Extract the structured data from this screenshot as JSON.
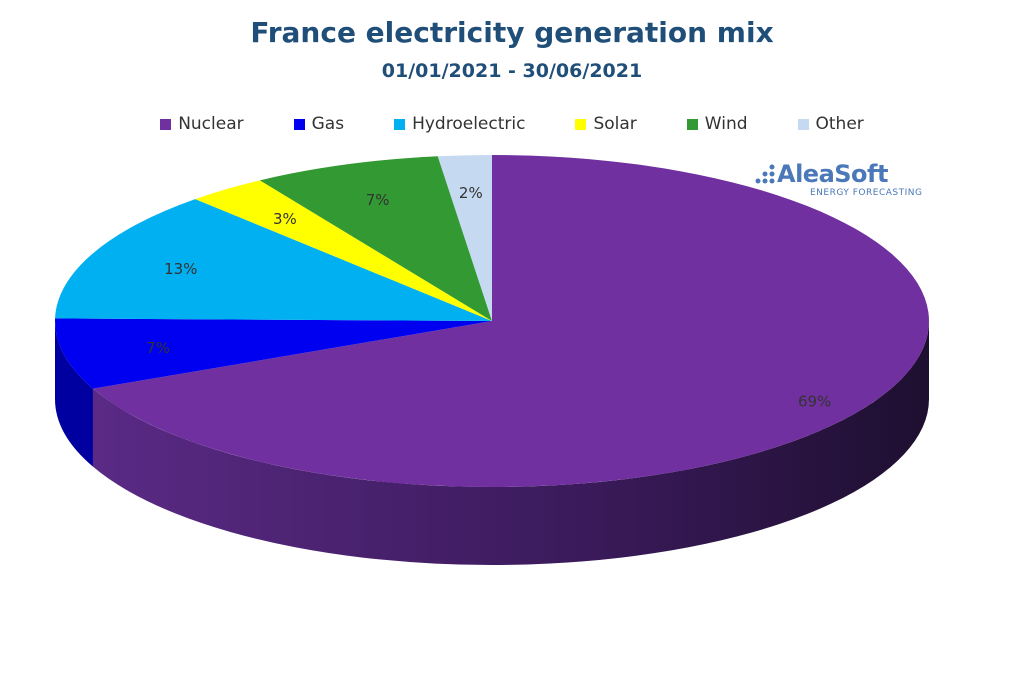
{
  "chart_data": {
    "type": "pie",
    "title": "France electricity generation mix",
    "subtitle": "01/01/2021 - 30/06/2021",
    "legend_position": "top",
    "categories": [
      "Nuclear",
      "Gas",
      "Hydroelectric",
      "Solar",
      "Wind",
      "Other"
    ],
    "values": [
      69,
      7,
      13,
      3,
      7,
      2
    ],
    "labels": [
      "69%",
      "7%",
      "13%",
      "3%",
      "7%",
      "2%"
    ],
    "colors": [
      "#7030a0",
      "#0000f0",
      "#00b0f0",
      "#ffff00",
      "#339933",
      "#c5d9f1"
    ],
    "side_colors": [
      "#4a2070",
      "#0000a0",
      "#0080b0",
      "#b0b000",
      "#206020",
      "#8fa5c0"
    ]
  },
  "logo": {
    "name": "AleaSoft",
    "tagline": "ENERGY FORECASTING"
  }
}
